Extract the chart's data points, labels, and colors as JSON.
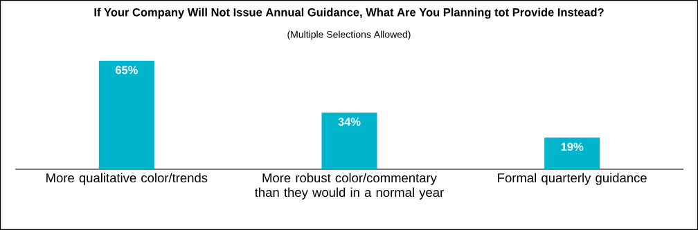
{
  "chart_data": {
    "type": "bar",
    "title": "If Your Company Will Not Issue Annual Guidance, What Are You Planning tot Provide Instead?",
    "subtitle": "(Multiple Selections Allowed)",
    "categories": [
      "More qualitative color/trends",
      "More robust color/commentary than they would in a normal year",
      "Formal quarterly guidance"
    ],
    "values": [
      65,
      34,
      19
    ],
    "value_labels": [
      "65%",
      "34%",
      "19%"
    ],
    "color": "#00b4cc"
  }
}
